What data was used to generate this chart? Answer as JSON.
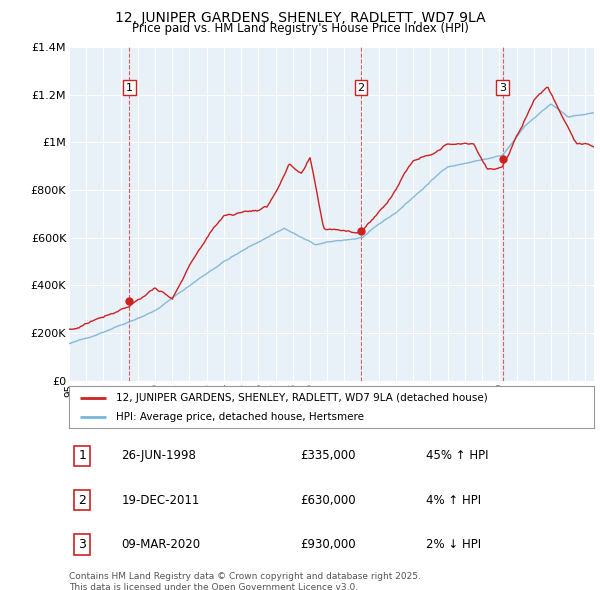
{
  "title": "12, JUNIPER GARDENS, SHENLEY, RADLETT, WD7 9LA",
  "subtitle": "Price paid vs. HM Land Registry's House Price Index (HPI)",
  "hpi_color": "#7ab4d8",
  "price_color": "#cc2222",
  "bg_color": "#e8f0f8",
  "grid_color": "#ffffff",
  "legend_label_price": "12, JUNIPER GARDENS, SHENLEY, RADLETT, WD7 9LA (detached house)",
  "legend_label_hpi": "HPI: Average price, detached house, Hertsmere",
  "sale1_date": "26-JUN-1998",
  "sale1_price": 335000,
  "sale1_year": 1998.5,
  "sale1_pct": "45% ↑ HPI",
  "sale2_date": "19-DEC-2011",
  "sale2_price": 630000,
  "sale2_year": 2011.96,
  "sale2_pct": "4% ↑ HPI",
  "sale3_date": "09-MAR-2020",
  "sale3_price": 930000,
  "sale3_year": 2020.19,
  "sale3_pct": "2% ↓ HPI",
  "footer": "Contains HM Land Registry data © Crown copyright and database right 2025.\nThis data is licensed under the Open Government Licence v3.0.",
  "ylim": [
    0,
    1400000
  ],
  "yticks": [
    0,
    200000,
    400000,
    600000,
    800000,
    1000000,
    1200000,
    1400000
  ],
  "ytick_labels": [
    "£0",
    "£200K",
    "£400K",
    "£600K",
    "£800K",
    "£1M",
    "£1.2M",
    "£1.4M"
  ],
  "xlim_start": 1995.0,
  "xlim_end": 2025.5
}
